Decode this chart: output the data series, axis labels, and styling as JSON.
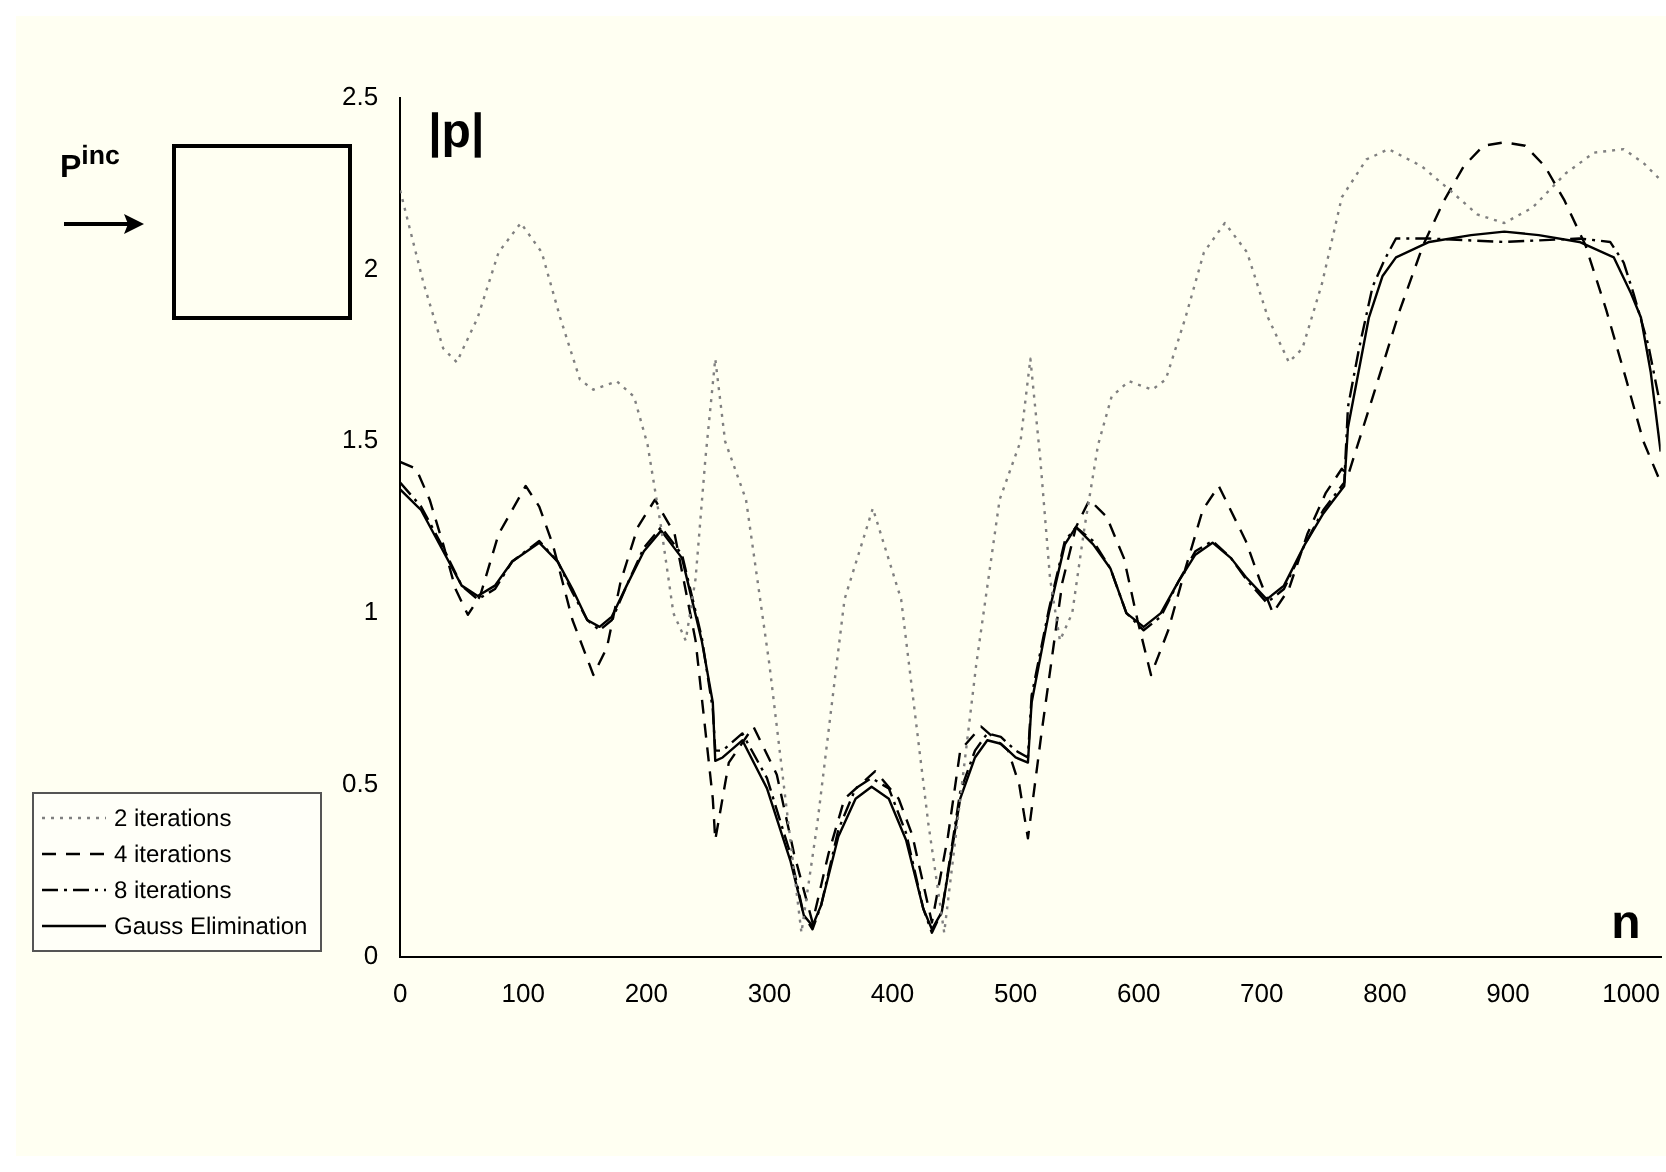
{
  "chart_data": {
    "type": "line",
    "xlabel": "n",
    "ylabel": "|p|",
    "xlim": [
      0,
      1024
    ],
    "ylim": [
      0,
      2.5
    ],
    "xticks": [
      0,
      100,
      200,
      300,
      400,
      500,
      600,
      700,
      800,
      900,
      1000
    ],
    "yticks": [
      0,
      0.5,
      1,
      1.5,
      2,
      2.5
    ],
    "grid": false,
    "legend": "left",
    "annotations": [
      "P$^{inc}$"
    ],
    "series": [
      {
        "name": "2 iterations",
        "color": "#808080",
        "line_style": "dotted",
        "x": [
          0,
          19,
          35,
          46,
          63,
          80,
          98,
          115,
          130,
          146,
          157,
          176,
          190,
          201,
          212,
          222,
          232,
          240,
          248,
          256,
          264,
          281,
          300,
          315,
          326,
          339,
          361,
          384,
          407,
          429,
          442,
          453,
          468,
          487,
          504,
          512,
          520,
          528,
          536,
          546,
          556,
          567,
          578,
          592,
          611,
          622,
          638,
          653,
          670,
          688,
          705,
          722,
          733,
          749,
          765,
          785,
          803,
          830,
          853,
          875,
          897,
          920,
          947,
          970,
          994,
          1010,
          1024
        ],
        "values": [
          2.23,
          1.96,
          1.77,
          1.73,
          1.86,
          2.05,
          2.135,
          2.05,
          1.86,
          1.68,
          1.65,
          1.675,
          1.63,
          1.49,
          1.25,
          1.0,
          0.92,
          1.1,
          1.45,
          1.74,
          1.5,
          1.33,
          0.85,
          0.4,
          0.07,
          0.39,
          1.04,
          1.305,
          1.04,
          0.39,
          0.07,
          0.4,
          0.85,
          1.33,
          1.5,
          1.74,
          1.45,
          1.1,
          0.92,
          1.0,
          1.25,
          1.49,
          1.63,
          1.675,
          1.65,
          1.68,
          1.86,
          2.05,
          2.135,
          2.05,
          1.86,
          1.73,
          1.77,
          1.96,
          2.21,
          2.32,
          2.35,
          2.3,
          2.23,
          2.16,
          2.135,
          2.18,
          2.28,
          2.34,
          2.35,
          2.31,
          2.26
        ]
      },
      {
        "name": "4 iterations",
        "color": "#000000",
        "line_style": "dashed",
        "x": [
          0,
          13,
          24,
          35,
          45,
          55,
          65,
          80,
          102,
          113,
          124,
          140,
          157,
          168,
          179,
          193,
          207,
          223,
          240,
          254,
          256,
          267,
          287,
          306,
          320,
          335,
          348,
          361,
          386,
          405,
          416,
          432,
          445,
          455,
          472,
          494,
          503,
          510,
          521,
          538,
          549,
          560,
          574,
          588,
          599,
          610,
          624,
          638,
          652,
          665,
          687,
          698,
          709,
          722,
          737,
          752,
          765,
          770,
          792,
          812,
          831,
          848,
          864,
          880,
          897,
          914,
          930,
          946,
          963,
          980,
          996,
          1010,
          1024
        ],
        "values": [
          1.44,
          1.42,
          1.33,
          1.2,
          1.07,
          0.995,
          1.05,
          1.23,
          1.37,
          1.31,
          1.2,
          0.98,
          0.82,
          0.9,
          1.09,
          1.25,
          1.33,
          1.23,
          0.92,
          0.46,
          0.34,
          0.565,
          0.67,
          0.53,
          0.3,
          0.1,
          0.3,
          0.46,
          0.54,
          0.46,
          0.355,
          0.1,
          0.35,
          0.6,
          0.67,
          0.6,
          0.5,
          0.345,
          0.65,
          1.09,
          1.25,
          1.33,
          1.28,
          1.16,
          0.98,
          0.82,
          0.95,
          1.13,
          1.3,
          1.37,
          1.21,
          1.1,
          1.0,
          1.07,
          1.23,
          1.35,
          1.42,
          1.4,
          1.65,
          1.88,
          2.07,
          2.2,
          2.3,
          2.36,
          2.37,
          2.36,
          2.3,
          2.2,
          2.07,
          1.88,
          1.68,
          1.5,
          1.38
        ]
      },
      {
        "name": "8 iterations",
        "color": "#000000",
        "line_style": "dashdot",
        "x": [
          0,
          17,
          35,
          50,
          63,
          77,
          91,
          113,
          128,
          140,
          152,
          162,
          172,
          184,
          198,
          212,
          229,
          245,
          254,
          256,
          262,
          278,
          298,
          317,
          328,
          335,
          342,
          356,
          370,
          383,
          397,
          411,
          425,
          432,
          440,
          455,
          467,
          477,
          488,
          500,
          510,
          513,
          527,
          540,
          549,
          563,
          577,
          590,
          604,
          618,
          632,
          646,
          660,
          675,
          687,
          704,
          718,
          735,
          750,
          767,
          770,
          779,
          790,
          800,
          809,
          836,
          897,
          958,
          983,
          994,
          1002,
          1014,
          1024
        ],
        "values": [
          1.38,
          1.31,
          1.19,
          1.08,
          1.04,
          1.07,
          1.15,
          1.21,
          1.15,
          1.06,
          0.98,
          0.95,
          0.98,
          1.08,
          1.19,
          1.25,
          1.17,
          0.93,
          0.72,
          0.6,
          0.6,
          0.65,
          0.52,
          0.3,
          0.12,
          0.08,
          0.15,
          0.37,
          0.49,
          0.52,
          0.49,
          0.36,
          0.14,
          0.07,
          0.13,
          0.48,
          0.6,
          0.65,
          0.64,
          0.6,
          0.58,
          0.76,
          1.01,
          1.21,
          1.25,
          1.21,
          1.13,
          1.0,
          0.95,
          0.99,
          1.09,
          1.18,
          1.21,
          1.16,
          1.1,
          1.03,
          1.07,
          1.2,
          1.3,
          1.38,
          1.6,
          1.77,
          1.95,
          2.03,
          2.09,
          2.09,
          2.08,
          2.09,
          2.08,
          2.02,
          1.93,
          1.78,
          1.6
        ]
      },
      {
        "name": "Gauss Elimination",
        "color": "#000000",
        "line_style": "solid",
        "x": [
          0,
          17,
          35,
          50,
          63,
          77,
          91,
          113,
          128,
          140,
          152,
          162,
          172,
          184,
          198,
          212,
          229,
          245,
          254,
          256,
          262,
          278,
          298,
          317,
          328,
          335,
          342,
          356,
          370,
          383,
          397,
          411,
          425,
          432,
          440,
          455,
          467,
          477,
          488,
          500,
          510,
          513,
          527,
          540,
          549,
          563,
          577,
          590,
          604,
          618,
          632,
          646,
          660,
          675,
          687,
          704,
          718,
          735,
          750,
          767,
          770,
          787,
          798,
          809,
          836,
          870,
          897,
          925,
          958,
          986,
          1000,
          1008,
          1016,
          1024
        ],
        "values": [
          1.36,
          1.3,
          1.18,
          1.08,
          1.05,
          1.08,
          1.15,
          1.205,
          1.15,
          1.07,
          0.98,
          0.96,
          0.99,
          1.08,
          1.18,
          1.24,
          1.16,
          0.92,
          0.74,
          0.57,
          0.58,
          0.63,
          0.49,
          0.28,
          0.12,
          0.09,
          0.15,
          0.35,
          0.46,
          0.495,
          0.46,
          0.34,
          0.14,
          0.08,
          0.13,
          0.46,
          0.58,
          0.63,
          0.62,
          0.58,
          0.565,
          0.74,
          1.0,
          1.2,
          1.25,
          1.2,
          1.13,
          1.0,
          0.96,
          1.0,
          1.09,
          1.17,
          1.205,
          1.16,
          1.105,
          1.04,
          1.08,
          1.2,
          1.29,
          1.37,
          1.54,
          1.86,
          1.98,
          2.035,
          2.08,
          2.1,
          2.11,
          2.1,
          2.08,
          2.035,
          1.93,
          1.86,
          1.7,
          1.47
        ]
      }
    ]
  }
}
